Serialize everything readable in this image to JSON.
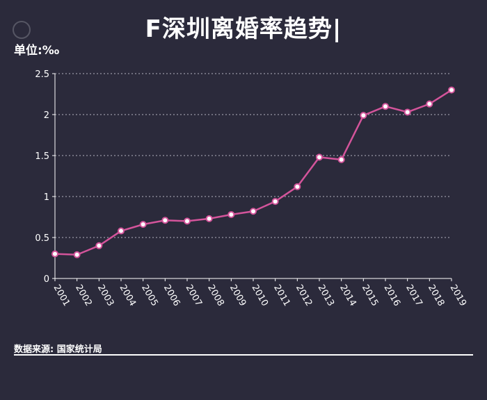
{
  "title": "F深圳离婚率趋势|",
  "unit_label": "单位:‰",
  "source": "数据来源: 国家统计局",
  "colors": {
    "background": "#2b2a3b",
    "line": "#d4549b",
    "marker_fill": "#ffffff",
    "grid": "#9a99a6",
    "text": "#ffffff"
  },
  "chart_data": {
    "type": "line",
    "categories": [
      "2001",
      "2002",
      "2003",
      "2004",
      "2005",
      "2006",
      "2007",
      "2008",
      "2009",
      "2010",
      "2011",
      "2012",
      "2013",
      "2014",
      "2015",
      "2016",
      "2017",
      "2018",
      "2019"
    ],
    "series": [
      {
        "values": [
          0.3,
          0.29,
          0.4,
          0.58,
          0.66,
          0.71,
          0.7,
          0.73,
          0.78,
          0.82,
          0.94,
          1.12,
          1.48,
          1.45,
          1.99,
          2.1,
          2.03,
          2.13,
          2.3
        ]
      }
    ],
    "yticks": [
      "0",
      "0.5",
      "1",
      "1.5",
      "2",
      "2.5"
    ],
    "ylim": [
      0,
      2.5
    ],
    "grid": "horizontal-dotted",
    "legend": "none"
  }
}
